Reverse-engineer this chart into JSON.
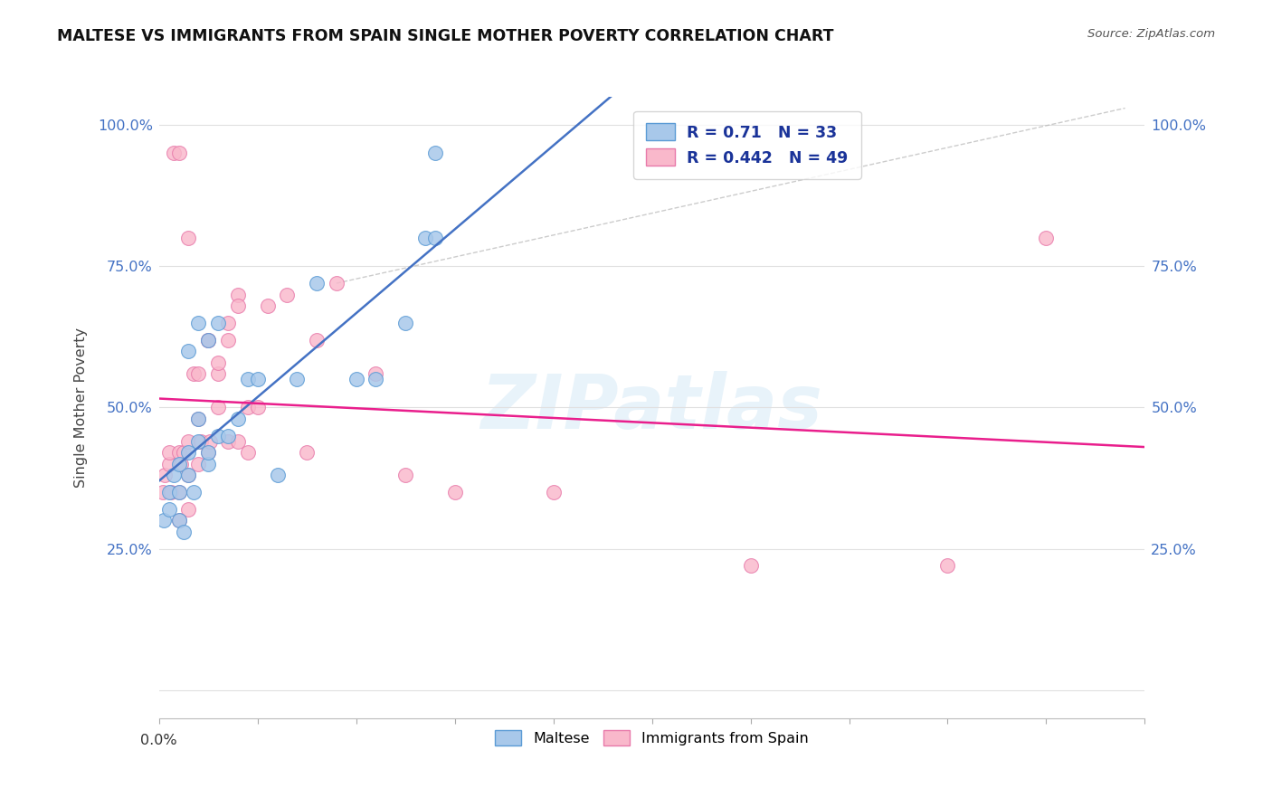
{
  "title": "MALTESE VS IMMIGRANTS FROM SPAIN SINGLE MOTHER POVERTY CORRELATION CHART",
  "source": "Source: ZipAtlas.com",
  "ylabel": "Single Mother Poverty",
  "legend_label1": "Maltese",
  "legend_label2": "Immigrants from Spain",
  "R1": 0.71,
  "N1": 33,
  "R2": 0.442,
  "N2": 49,
  "watermark": "ZIPatlas",
  "blue_face": "#a8c8ea",
  "blue_edge": "#5b9bd5",
  "pink_face": "#f9b8cb",
  "pink_edge": "#e87aaa",
  "blue_line": "#4472c4",
  "pink_line": "#e91e8c",
  "dash_line": "#aaaaaa",
  "grid_color": "#e0e0e0",
  "tick_color": "#4472c4",
  "title_color": "#111111",
  "source_color": "#555555",
  "ylabel_color": "#444444",
  "legend_text_color": "#1a3399",
  "xmin": 0.0,
  "xmax": 0.1,
  "ymin": 0.0,
  "ymax": 1.05,
  "blue_x": [
    0.0005,
    0.001,
    0.001,
    0.0015,
    0.002,
    0.002,
    0.002,
    0.0025,
    0.003,
    0.003,
    0.003,
    0.0035,
    0.004,
    0.004,
    0.004,
    0.005,
    0.005,
    0.005,
    0.006,
    0.006,
    0.007,
    0.008,
    0.009,
    0.01,
    0.012,
    0.014,
    0.016,
    0.02,
    0.022,
    0.025,
    0.027,
    0.028,
    0.028
  ],
  "blue_y": [
    0.3,
    0.35,
    0.32,
    0.38,
    0.3,
    0.35,
    0.4,
    0.28,
    0.38,
    0.42,
    0.6,
    0.35,
    0.44,
    0.65,
    0.48,
    0.4,
    0.42,
    0.62,
    0.45,
    0.65,
    0.45,
    0.48,
    0.55,
    0.55,
    0.38,
    0.55,
    0.72,
    0.55,
    0.55,
    0.65,
    0.8,
    0.8,
    0.95
  ],
  "pink_x": [
    0.0004,
    0.0006,
    0.001,
    0.001,
    0.0012,
    0.0015,
    0.002,
    0.002,
    0.002,
    0.0022,
    0.0025,
    0.003,
    0.003,
    0.003,
    0.0035,
    0.004,
    0.004,
    0.0042,
    0.005,
    0.005,
    0.0052,
    0.006,
    0.006,
    0.007,
    0.007,
    0.008,
    0.008,
    0.009,
    0.01,
    0.011,
    0.013,
    0.015,
    0.016,
    0.018,
    0.022,
    0.025,
    0.03,
    0.04,
    0.06,
    0.08,
    0.002,
    0.003,
    0.004,
    0.005,
    0.006,
    0.007,
    0.008,
    0.009,
    0.09
  ],
  "pink_y": [
    0.35,
    0.38,
    0.4,
    0.42,
    0.35,
    0.95,
    0.35,
    0.42,
    0.95,
    0.4,
    0.42,
    0.38,
    0.44,
    0.8,
    0.56,
    0.4,
    0.56,
    0.44,
    0.42,
    0.62,
    0.44,
    0.5,
    0.56,
    0.44,
    0.62,
    0.44,
    0.7,
    0.5,
    0.5,
    0.68,
    0.7,
    0.42,
    0.62,
    0.72,
    0.56,
    0.38,
    0.35,
    0.35,
    0.22,
    0.22,
    0.3,
    0.32,
    0.48,
    0.62,
    0.58,
    0.65,
    0.68,
    0.42,
    0.8
  ],
  "yticks": [
    0.0,
    0.25,
    0.5,
    0.75,
    1.0
  ],
  "ytick_labels": [
    "",
    "25.0%",
    "50.0%",
    "75.0%",
    "100.0%"
  ]
}
